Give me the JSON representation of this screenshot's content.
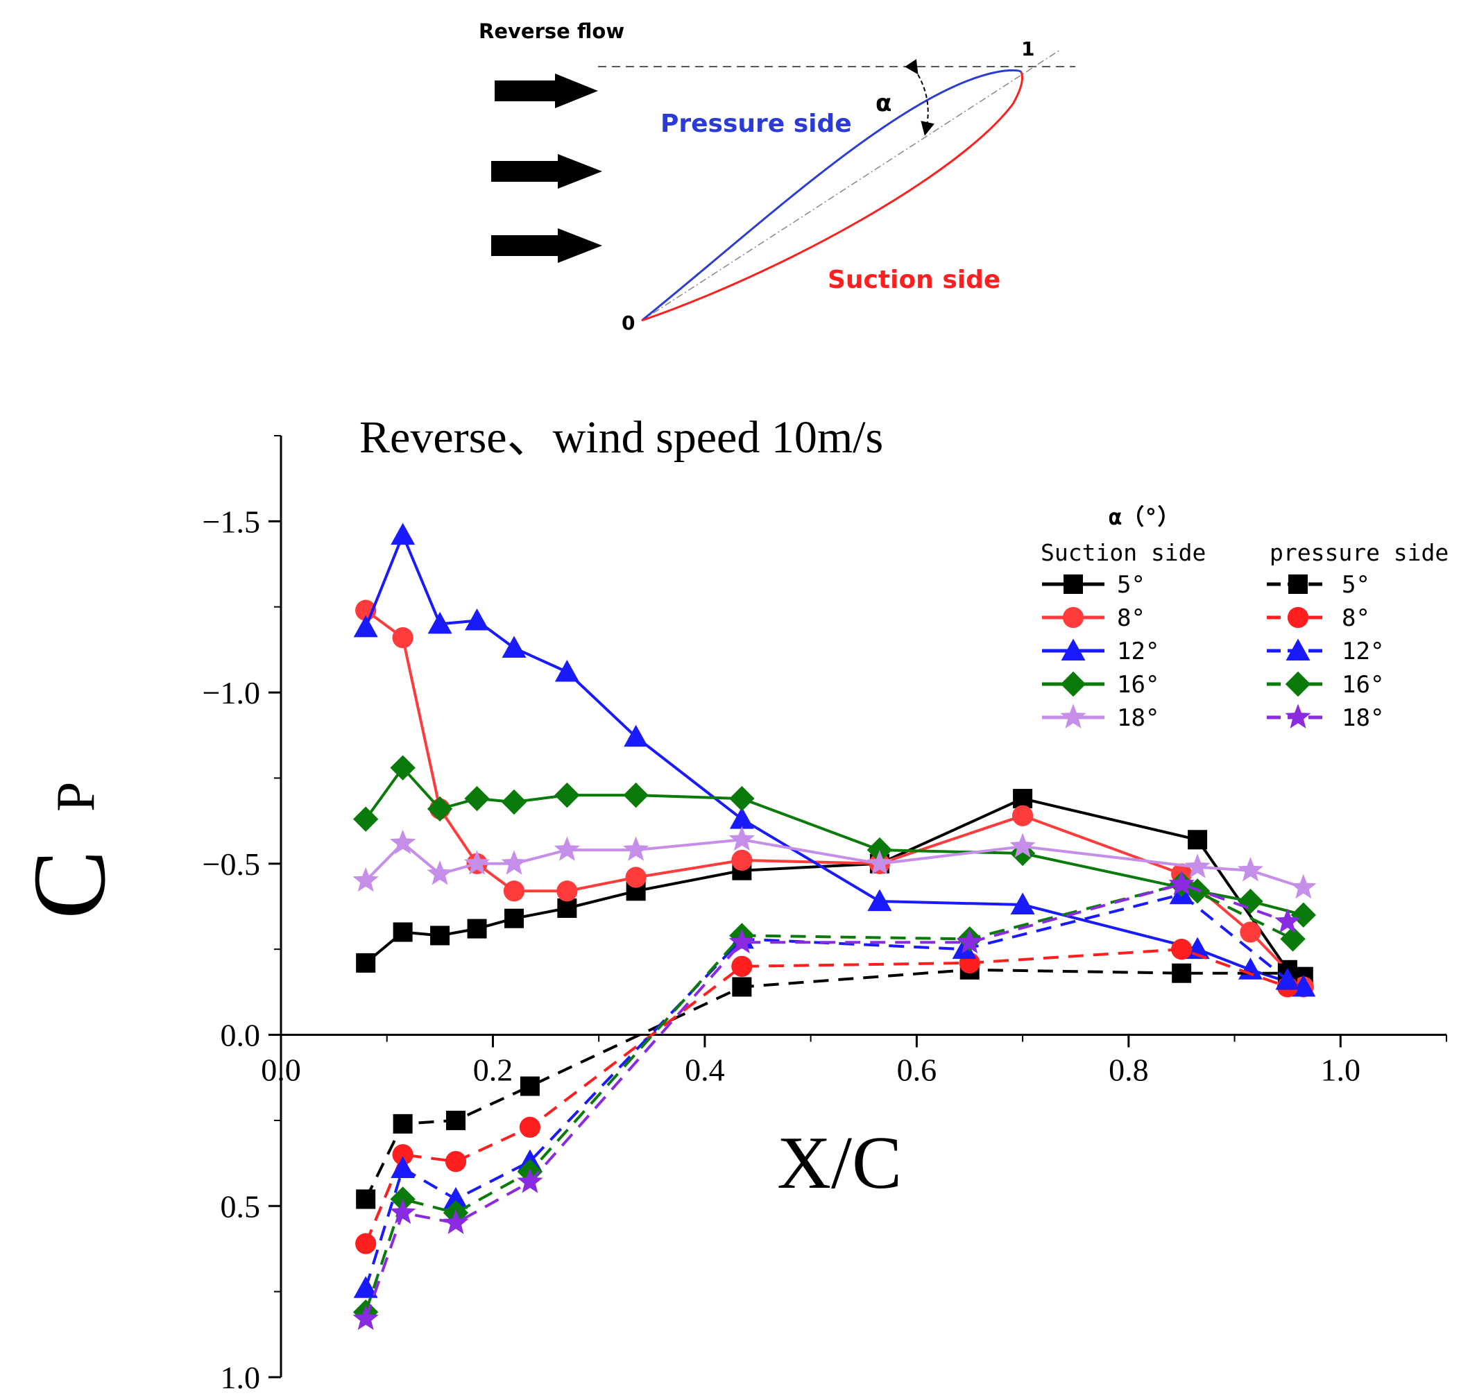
{
  "diagram": {
    "flow_label": "Reverse flow",
    "pressure_side_label": "Pressure side",
    "suction_side_label": "Suction side",
    "alpha_symbol": "α",
    "leading_point_label": "0",
    "trailing_point_label": "1",
    "colors": {
      "pressure": "#2b3bd6",
      "suction": "#ff1f1f",
      "arrow": "#000000"
    }
  },
  "chart_data": {
    "type": "line",
    "title": "Reverse、wind speed 10m/s",
    "xlabel": "X/C",
    "ylabel": "C",
    "ylabel_subscript": "P",
    "xlim": [
      0.0,
      1.1
    ],
    "ylim": [
      1.0,
      -1.75
    ],
    "y_axis_inverted": true,
    "x_ticks": [
      0.0,
      0.2,
      0.4,
      0.6,
      0.8,
      1.0
    ],
    "x_tick_labels": [
      "0.0",
      "0.2",
      "0.4",
      "0.6",
      "0.8",
      "1.0"
    ],
    "y_ticks": [
      -1.5,
      -1.0,
      -0.5,
      0.0,
      0.5,
      1.0
    ],
    "y_tick_labels": [
      "−1.5",
      "−1.0",
      "−0.5",
      "0.0",
      "0.5",
      "1.0"
    ],
    "legend": {
      "title": "α（°）",
      "suction_header": "Suction side",
      "pressure_header": "pressure side",
      "placement": "top-right"
    },
    "series": [
      {
        "name": "5°",
        "side": "suction",
        "color": "#000000",
        "marker": "square",
        "x": [
          0.08,
          0.115,
          0.15,
          0.185,
          0.22,
          0.27,
          0.335,
          0.435,
          0.565,
          0.7,
          0.865,
          0.95,
          0.965
        ],
        "y": [
          -0.21,
          -0.3,
          -0.29,
          -0.31,
          -0.34,
          -0.37,
          -0.42,
          -0.48,
          -0.5,
          -0.69,
          -0.57,
          -0.19,
          -0.17
        ]
      },
      {
        "name": "8°",
        "side": "suction",
        "color": "#ff3b3b",
        "marker": "circle",
        "x": [
          0.08,
          0.115,
          0.15,
          0.185,
          0.22,
          0.27,
          0.335,
          0.435,
          0.565,
          0.7,
          0.85,
          0.915,
          0.965
        ],
        "y": [
          -1.24,
          -1.16,
          -0.66,
          -0.5,
          -0.42,
          -0.42,
          -0.46,
          -0.51,
          -0.5,
          -0.64,
          -0.47,
          -0.3,
          -0.14
        ]
      },
      {
        "name": "12°",
        "side": "suction",
        "color": "#1a1aff",
        "marker": "triangle",
        "x": [
          0.08,
          0.115,
          0.15,
          0.185,
          0.22,
          0.27,
          0.335,
          0.435,
          0.565,
          0.7,
          0.865,
          0.915,
          0.965
        ],
        "y": [
          -1.19,
          -1.46,
          -1.2,
          -1.21,
          -1.13,
          -1.06,
          -0.87,
          -0.63,
          -0.39,
          -0.38,
          -0.25,
          -0.19,
          -0.14
        ]
      },
      {
        "name": "16°",
        "side": "suction",
        "color": "#0a7a0a",
        "marker": "diamond",
        "x": [
          0.08,
          0.115,
          0.15,
          0.185,
          0.22,
          0.27,
          0.335,
          0.435,
          0.565,
          0.7,
          0.865,
          0.915,
          0.965
        ],
        "y": [
          -0.63,
          -0.78,
          -0.66,
          -0.69,
          -0.68,
          -0.7,
          -0.7,
          -0.69,
          -0.54,
          -0.53,
          -0.42,
          -0.39,
          -0.35
        ]
      },
      {
        "name": "18°",
        "side": "suction",
        "color": "#c58ee8",
        "marker": "star",
        "x": [
          0.08,
          0.115,
          0.15,
          0.185,
          0.22,
          0.27,
          0.335,
          0.435,
          0.565,
          0.7,
          0.865,
          0.915,
          0.965
        ],
        "y": [
          -0.45,
          -0.56,
          -0.47,
          -0.5,
          -0.5,
          -0.54,
          -0.54,
          -0.57,
          -0.5,
          -0.55,
          -0.49,
          -0.48,
          -0.43
        ]
      },
      {
        "name": "5°",
        "side": "pressure",
        "color": "#000000",
        "marker": "square",
        "x": [
          0.08,
          0.115,
          0.165,
          0.235,
          0.435,
          0.65,
          0.85,
          0.95
        ],
        "y": [
          0.48,
          0.26,
          0.25,
          0.15,
          -0.14,
          -0.19,
          -0.18,
          -0.18
        ]
      },
      {
        "name": "8°",
        "side": "pressure",
        "color": "#ff1f1f",
        "marker": "circle",
        "x": [
          0.08,
          0.115,
          0.165,
          0.235,
          0.435,
          0.65,
          0.85,
          0.95
        ],
        "y": [
          0.61,
          0.35,
          0.37,
          0.27,
          -0.2,
          -0.21,
          -0.25,
          -0.14
        ]
      },
      {
        "name": "12°",
        "side": "pressure",
        "color": "#1a1aff",
        "marker": "triangle",
        "x": [
          0.08,
          0.115,
          0.165,
          0.235,
          0.435,
          0.645,
          0.85,
          0.95
        ],
        "y": [
          0.74,
          0.39,
          0.48,
          0.37,
          -0.28,
          -0.25,
          -0.41,
          -0.16
        ]
      },
      {
        "name": "16°",
        "side": "pressure",
        "color": "#0a7a0a",
        "marker": "diamond",
        "x": [
          0.08,
          0.115,
          0.165,
          0.235,
          0.435,
          0.65,
          0.85,
          0.955
        ],
        "y": [
          0.81,
          0.48,
          0.52,
          0.4,
          -0.29,
          -0.28,
          -0.44,
          -0.28
        ]
      },
      {
        "name": "18°",
        "side": "pressure",
        "color": "#8a2be2",
        "marker": "star",
        "x": [
          0.08,
          0.115,
          0.165,
          0.235,
          0.435,
          0.65,
          0.85,
          0.95
        ],
        "y": [
          0.83,
          0.52,
          0.55,
          0.43,
          -0.27,
          -0.27,
          -0.44,
          -0.33
        ]
      }
    ]
  }
}
